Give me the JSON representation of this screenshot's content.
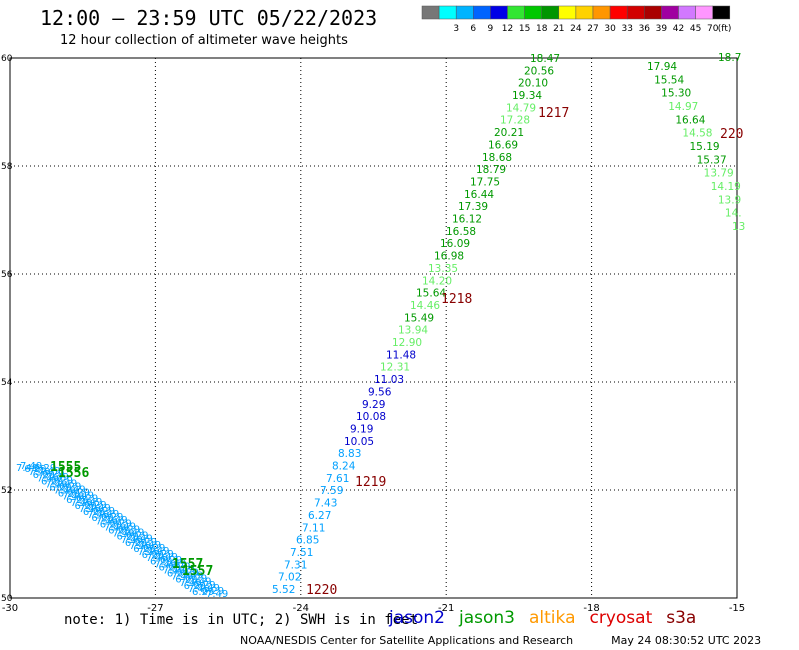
{
  "header": {
    "title": "12:00 – 23:59 UTC 05/22/2023",
    "subtitle": "12 hour collection of altimeter wave heights"
  },
  "scale": {
    "bins": [
      {
        "label": "",
        "color": "#777777"
      },
      {
        "label": "3",
        "color": "#00ffff"
      },
      {
        "label": "6",
        "color": "#00b4ff"
      },
      {
        "label": "9",
        "color": "#0064ff"
      },
      {
        "label": "12",
        "color": "#0000e6"
      },
      {
        "label": "15",
        "color": "#32e632"
      },
      {
        "label": "18",
        "color": "#00c800"
      },
      {
        "label": "21",
        "color": "#009600"
      },
      {
        "label": "24",
        "color": "#ffff00"
      },
      {
        "label": "27",
        "color": "#ffd200"
      },
      {
        "label": "30",
        "color": "#ff9600"
      },
      {
        "label": "33",
        "color": "#ff0000"
      },
      {
        "label": "36",
        "color": "#d20000"
      },
      {
        "label": "39",
        "color": "#aa0000"
      },
      {
        "label": "42",
        "color": "#a000a0"
      },
      {
        "label": "45",
        "color": "#d278ff"
      },
      {
        "label": "70",
        "color": "#ff96ff"
      },
      {
        "label": "",
        "color": "#000000"
      }
    ],
    "unit": "(ft)"
  },
  "map": {
    "lon_min": -30,
    "lon_max": -15,
    "lat_min": 50,
    "lat_max": 60,
    "lon_ticks": [
      "-30",
      "-27",
      "-24",
      "-21",
      "-18",
      "-15"
    ],
    "lon_values": [
      -30,
      -27,
      -24,
      -21,
      -18,
      -15
    ],
    "lat_ticks": [
      "50",
      "52",
      "54",
      "56",
      "58",
      "60"
    ],
    "lat_values": [
      50,
      52,
      54,
      56,
      58,
      60
    ],
    "track_colors": {
      "c3": "#00a0ff",
      "c4": "#0000cc",
      "c5": "#33dd33",
      "c6": "#009900",
      "c7": "#66ee66"
    },
    "pass_label_color": "#880000",
    "track_a": [
      {
        "v": "18.47",
        "c": "c6"
      },
      {
        "v": "20.56",
        "c": "c6"
      },
      {
        "v": "20.10",
        "c": "c6"
      },
      {
        "v": "19.34",
        "c": "c6"
      },
      {
        "v": "14.79",
        "c": "c7"
      },
      {
        "v": "17.28",
        "c": "c7"
      },
      {
        "v": "20.21",
        "c": "c6"
      },
      {
        "v": "16.69",
        "c": "c6"
      },
      {
        "v": "18.68",
        "c": "c6"
      },
      {
        "v": "18.79",
        "c": "c6"
      },
      {
        "v": "17.75",
        "c": "c6"
      },
      {
        "v": "16.44",
        "c": "c6"
      },
      {
        "v": "17.39",
        "c": "c6"
      },
      {
        "v": "16.12",
        "c": "c6"
      },
      {
        "v": "16.58",
        "c": "c6"
      },
      {
        "v": "16.09",
        "c": "c6"
      },
      {
        "v": "16.98",
        "c": "c6"
      },
      {
        "v": "13.35",
        "c": "c7"
      },
      {
        "v": "14.20",
        "c": "c7"
      },
      {
        "v": "15.64",
        "c": "c6"
      },
      {
        "v": "14.46",
        "c": "c7"
      },
      {
        "v": "15.49",
        "c": "c6"
      },
      {
        "v": "13.94",
        "c": "c7"
      },
      {
        "v": "12.90",
        "c": "c7"
      },
      {
        "v": "11.48",
        "c": "c4"
      },
      {
        "v": "12.31",
        "c": "c7"
      },
      {
        "v": "11.03",
        "c": "c4"
      },
      {
        "v": "9.56",
        "c": "c4"
      },
      {
        "v": "9.29",
        "c": "c4"
      },
      {
        "v": "10.08",
        "c": "c4"
      },
      {
        "v": "9.19",
        "c": "c4"
      },
      {
        "v": "10.05",
        "c": "c4"
      },
      {
        "v": "8.83",
        "c": "c3"
      },
      {
        "v": "8.24",
        "c": "c3"
      },
      {
        "v": "7.61",
        "c": "c3"
      },
      {
        "v": "7.59",
        "c": "c3"
      },
      {
        "v": "7.43",
        "c": "c3"
      },
      {
        "v": "6.27",
        "c": "c3"
      },
      {
        "v": "7.11",
        "c": "c3"
      },
      {
        "v": "6.85",
        "c": "c3"
      },
      {
        "v": "7.51",
        "c": "c3"
      },
      {
        "v": "7.31",
        "c": "c3"
      },
      {
        "v": "7.02",
        "c": "c3"
      },
      {
        "v": "5.52",
        "c": "c3"
      }
    ],
    "track_b": [
      {
        "v": "17.94",
        "c": "c6"
      },
      {
        "v": "15.54",
        "c": "c6"
      },
      {
        "v": "15.30",
        "c": "c6"
      },
      {
        "v": "14.97",
        "c": "c7"
      },
      {
        "v": "16.64",
        "c": "c6"
      },
      {
        "v": "14.58",
        "c": "c7"
      },
      {
        "v": "15.19",
        "c": "c6"
      },
      {
        "v": "15.37",
        "c": "c6"
      },
      {
        "v": "13.79",
        "c": "c7"
      },
      {
        "v": "14.19",
        "c": "c7"
      },
      {
        "v": "13.9",
        "c": "c7"
      },
      {
        "v": "14.",
        "c": "c7"
      },
      {
        "v": "13",
        "c": "c7"
      }
    ],
    "edge_value": "18.7",
    "pass_labels": [
      "1217",
      "1218",
      "1219",
      "1220",
      "220"
    ],
    "cluster_labels": [
      "1555",
      "1556",
      "1557",
      "1557"
    ],
    "cluster_values": [
      "7.49",
      "6.29"
    ]
  },
  "footer": {
    "note": "note: 1) Time is in UTC; 2) SWH is in feet",
    "satellites": [
      {
        "name": "jason2",
        "color": "#0000cc"
      },
      {
        "name": "jason3",
        "color": "#009900"
      },
      {
        "name": "altika",
        "color": "#ff9900"
      },
      {
        "name": "cryosat",
        "color": "#dd0000"
      },
      {
        "name": "s3a",
        "color": "#880000"
      }
    ],
    "credit_org": "NOAA/NESDIS Center for Satellite Applications and Research",
    "credit_date": "May 24 08:30:52 UTC 2023"
  }
}
